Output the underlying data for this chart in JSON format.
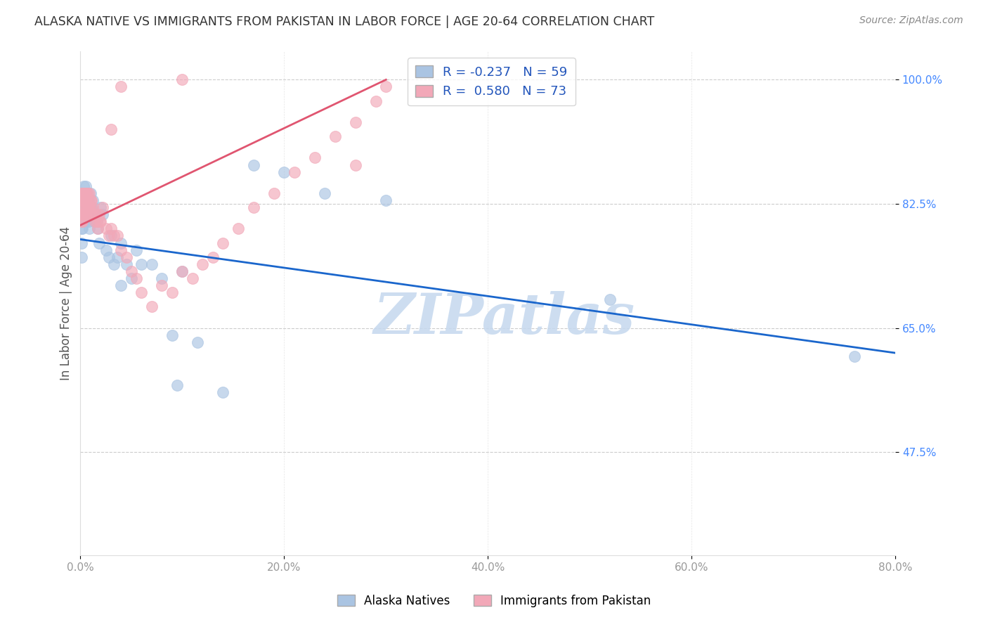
{
  "title": "ALASKA NATIVE VS IMMIGRANTS FROM PAKISTAN IN LABOR FORCE | AGE 20-64 CORRELATION CHART",
  "source": "Source: ZipAtlas.com",
  "ylabel": "In Labor Force | Age 20-64",
  "xmin": 0.0,
  "xmax": 0.8,
  "ymin": 0.33,
  "ymax": 1.04,
  "watermark": "ZIPatlas",
  "legend_blue_R": "-0.237",
  "legend_blue_N": "59",
  "legend_pink_R": "0.580",
  "legend_pink_N": "73",
  "blue_color": "#aac4e2",
  "pink_color": "#f2a8b8",
  "blue_line_color": "#1a66cc",
  "pink_line_color": "#e05570",
  "title_color": "#333333",
  "axis_color": "#999999",
  "grid_color": "#cccccc",
  "watermark_color": "#c5d8ee",
  "ytick_color": "#4488ff",
  "blue_line_x0": 0.0,
  "blue_line_x1": 0.8,
  "blue_line_y0": 0.775,
  "blue_line_y1": 0.615,
  "pink_line_x0": 0.0,
  "pink_line_x1": 0.3,
  "pink_line_y0": 0.795,
  "pink_line_y1": 1.0,
  "blue_x": [
    0.001,
    0.001,
    0.001,
    0.001,
    0.002,
    0.002,
    0.002,
    0.003,
    0.003,
    0.003,
    0.004,
    0.004,
    0.005,
    0.005,
    0.005,
    0.006,
    0.006,
    0.007,
    0.007,
    0.008,
    0.008,
    0.009,
    0.009,
    0.01,
    0.01,
    0.011,
    0.012,
    0.013,
    0.014,
    0.015,
    0.016,
    0.017,
    0.018,
    0.02,
    0.022,
    0.025,
    0.028,
    0.03,
    0.033,
    0.036,
    0.04,
    0.04,
    0.045,
    0.05,
    0.055,
    0.06,
    0.07,
    0.08,
    0.09,
    0.095,
    0.1,
    0.115,
    0.14,
    0.17,
    0.2,
    0.24,
    0.3,
    0.52,
    0.76
  ],
  "blue_y": [
    0.82,
    0.79,
    0.77,
    0.75,
    0.84,
    0.82,
    0.79,
    0.85,
    0.83,
    0.8,
    0.84,
    0.81,
    0.85,
    0.83,
    0.8,
    0.84,
    0.82,
    0.83,
    0.81,
    0.83,
    0.8,
    0.82,
    0.79,
    0.84,
    0.81,
    0.82,
    0.83,
    0.81,
    0.8,
    0.81,
    0.8,
    0.79,
    0.77,
    0.82,
    0.81,
    0.76,
    0.75,
    0.78,
    0.74,
    0.75,
    0.77,
    0.71,
    0.74,
    0.72,
    0.76,
    0.74,
    0.74,
    0.72,
    0.64,
    0.57,
    0.73,
    0.63,
    0.56,
    0.88,
    0.87,
    0.84,
    0.83,
    0.69,
    0.61
  ],
  "pink_x": [
    0.001,
    0.001,
    0.001,
    0.001,
    0.001,
    0.002,
    0.002,
    0.002,
    0.002,
    0.002,
    0.003,
    0.003,
    0.003,
    0.004,
    0.004,
    0.004,
    0.005,
    0.005,
    0.005,
    0.006,
    0.006,
    0.006,
    0.007,
    0.007,
    0.008,
    0.008,
    0.009,
    0.009,
    0.01,
    0.01,
    0.011,
    0.011,
    0.012,
    0.013,
    0.014,
    0.015,
    0.016,
    0.017,
    0.018,
    0.019,
    0.02,
    0.022,
    0.025,
    0.028,
    0.03,
    0.033,
    0.036,
    0.04,
    0.045,
    0.05,
    0.055,
    0.06,
    0.07,
    0.08,
    0.09,
    0.1,
    0.11,
    0.12,
    0.13,
    0.14,
    0.155,
    0.17,
    0.19,
    0.21,
    0.23,
    0.25,
    0.27,
    0.29,
    0.3,
    0.27,
    0.1,
    0.04,
    0.03
  ],
  "pink_y": [
    0.84,
    0.83,
    0.82,
    0.81,
    0.8,
    0.84,
    0.83,
    0.82,
    0.81,
    0.8,
    0.84,
    0.83,
    0.82,
    0.84,
    0.83,
    0.81,
    0.84,
    0.83,
    0.81,
    0.84,
    0.83,
    0.81,
    0.84,
    0.82,
    0.83,
    0.82,
    0.84,
    0.82,
    0.83,
    0.82,
    0.83,
    0.81,
    0.82,
    0.81,
    0.8,
    0.81,
    0.8,
    0.79,
    0.81,
    0.8,
    0.8,
    0.82,
    0.79,
    0.78,
    0.79,
    0.78,
    0.78,
    0.76,
    0.75,
    0.73,
    0.72,
    0.7,
    0.68,
    0.71,
    0.7,
    0.73,
    0.72,
    0.74,
    0.75,
    0.77,
    0.79,
    0.82,
    0.84,
    0.87,
    0.89,
    0.92,
    0.94,
    0.97,
    0.99,
    0.88,
    1.0,
    0.99,
    0.93
  ]
}
